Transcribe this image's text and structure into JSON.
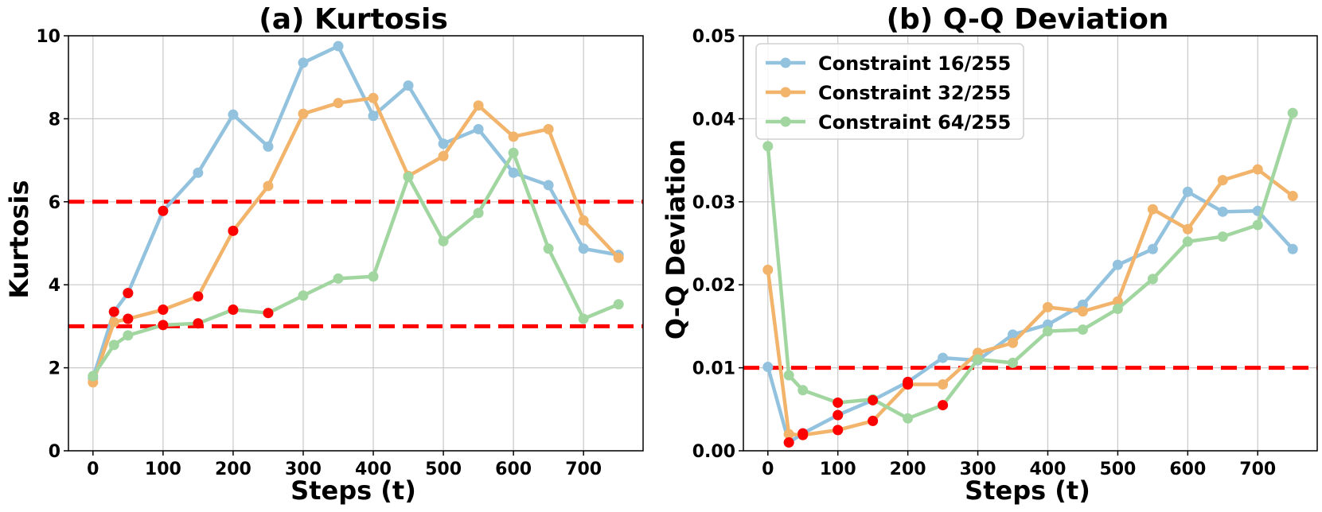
{
  "chart_data": [
    {
      "type": "line",
      "title": "(a) Kurtosis",
      "xlabel": "Steps (t)",
      "ylabel": "Kurtosis",
      "xlim": [
        -35,
        785
      ],
      "ylim": [
        0,
        10
      ],
      "xticks": [
        0,
        100,
        200,
        300,
        400,
        500,
        600,
        700
      ],
      "yticks": [
        0,
        2,
        4,
        6,
        8,
        10
      ],
      "ytick_labels": [
        "0",
        "2",
        "4",
        "6",
        "8",
        "10"
      ],
      "grid": true,
      "thresholds": [
        6,
        3
      ],
      "x": [
        0,
        30,
        50,
        100,
        150,
        200,
        250,
        300,
        350,
        400,
        450,
        500,
        550,
        600,
        650,
        700,
        750
      ],
      "series": [
        {
          "name": "Constraint 16/255",
          "color": "#92c2de",
          "values": [
            1.75,
            3.35,
            3.8,
            5.78,
            6.7,
            8.1,
            7.33,
            9.35,
            9.75,
            8.07,
            8.8,
            7.4,
            7.75,
            6.7,
            6.4,
            4.87,
            4.72
          ]
        },
        {
          "name": "Constraint 32/255",
          "color": "#f2b36b",
          "values": [
            1.65,
            3.1,
            3.18,
            3.4,
            3.72,
            5.3,
            6.38,
            8.12,
            8.38,
            8.5,
            6.62,
            7.1,
            8.32,
            7.57,
            7.75,
            5.55,
            4.65
          ]
        },
        {
          "name": "Constraint 64/255",
          "color": "#a2d6a0",
          "values": [
            1.8,
            2.55,
            2.78,
            3.03,
            3.07,
            3.4,
            3.32,
            3.74,
            4.15,
            4.2,
            6.6,
            5.05,
            5.73,
            7.18,
            4.87,
            3.18,
            3.53
          ]
        }
      ],
      "red_markers": [
        [
          30,
          3.35
        ],
        [
          50,
          3.8
        ],
        [
          100,
          5.78
        ],
        [
          50,
          3.18
        ],
        [
          100,
          3.4
        ],
        [
          150,
          3.72
        ],
        [
          200,
          5.3
        ],
        [
          100,
          3.03
        ],
        [
          150,
          3.07
        ],
        [
          200,
          3.4
        ],
        [
          250,
          3.32
        ]
      ]
    },
    {
      "type": "line",
      "title": "(b) Q-Q Deviation",
      "xlabel": "Steps (t)",
      "ylabel": "Q-Q Deviation",
      "xlim": [
        -35,
        785
      ],
      "ylim": [
        0,
        0.05
      ],
      "xticks": [
        0,
        100,
        200,
        300,
        400,
        500,
        600,
        700
      ],
      "yticks": [
        0,
        0.01,
        0.02,
        0.03,
        0.04,
        0.05
      ],
      "ytick_labels": [
        "0.00",
        "0.01",
        "0.02",
        "0.03",
        "0.04",
        "0.05"
      ],
      "grid": true,
      "thresholds": [
        0.01
      ],
      "legend_position": "top-left",
      "x": [
        0,
        30,
        50,
        100,
        150,
        200,
        250,
        300,
        350,
        400,
        450,
        500,
        550,
        600,
        650,
        700,
        750
      ],
      "series": [
        {
          "name": "Constraint 16/255",
          "color": "#92c2de",
          "values": [
            0.0101,
            0.001,
            0.0021,
            0.0043,
            0.0061,
            0.0083,
            0.0112,
            0.0109,
            0.014,
            0.0152,
            0.0176,
            0.0224,
            0.0243,
            0.0312,
            0.0288,
            0.0289,
            0.0243
          ]
        },
        {
          "name": "Constraint 32/255",
          "color": "#f2b36b",
          "values": [
            0.0218,
            0.002,
            0.0019,
            0.0025,
            0.0036,
            0.008,
            0.008,
            0.0118,
            0.013,
            0.0173,
            0.0168,
            0.018,
            0.0291,
            0.0267,
            0.0326,
            0.0339,
            0.0307
          ]
        },
        {
          "name": "Constraint 64/255",
          "color": "#a2d6a0",
          "values": [
            0.0367,
            0.0091,
            0.0073,
            0.0058,
            0.0062,
            0.0039,
            0.0055,
            0.011,
            0.0106,
            0.0144,
            0.0146,
            0.0171,
            0.0207,
            0.0252,
            0.0258,
            0.0272,
            0.0407
          ]
        }
      ],
      "red_markers": [
        [
          30,
          0.001
        ],
        [
          50,
          0.0021
        ],
        [
          100,
          0.0043
        ],
        [
          150,
          0.0061
        ],
        [
          200,
          0.0083
        ],
        [
          50,
          0.0019
        ],
        [
          100,
          0.0025
        ],
        [
          150,
          0.0036
        ],
        [
          200,
          0.008
        ],
        [
          250,
          0.0055
        ],
        [
          100,
          0.0058
        ],
        [
          200,
          0.008
        ]
      ]
    }
  ]
}
